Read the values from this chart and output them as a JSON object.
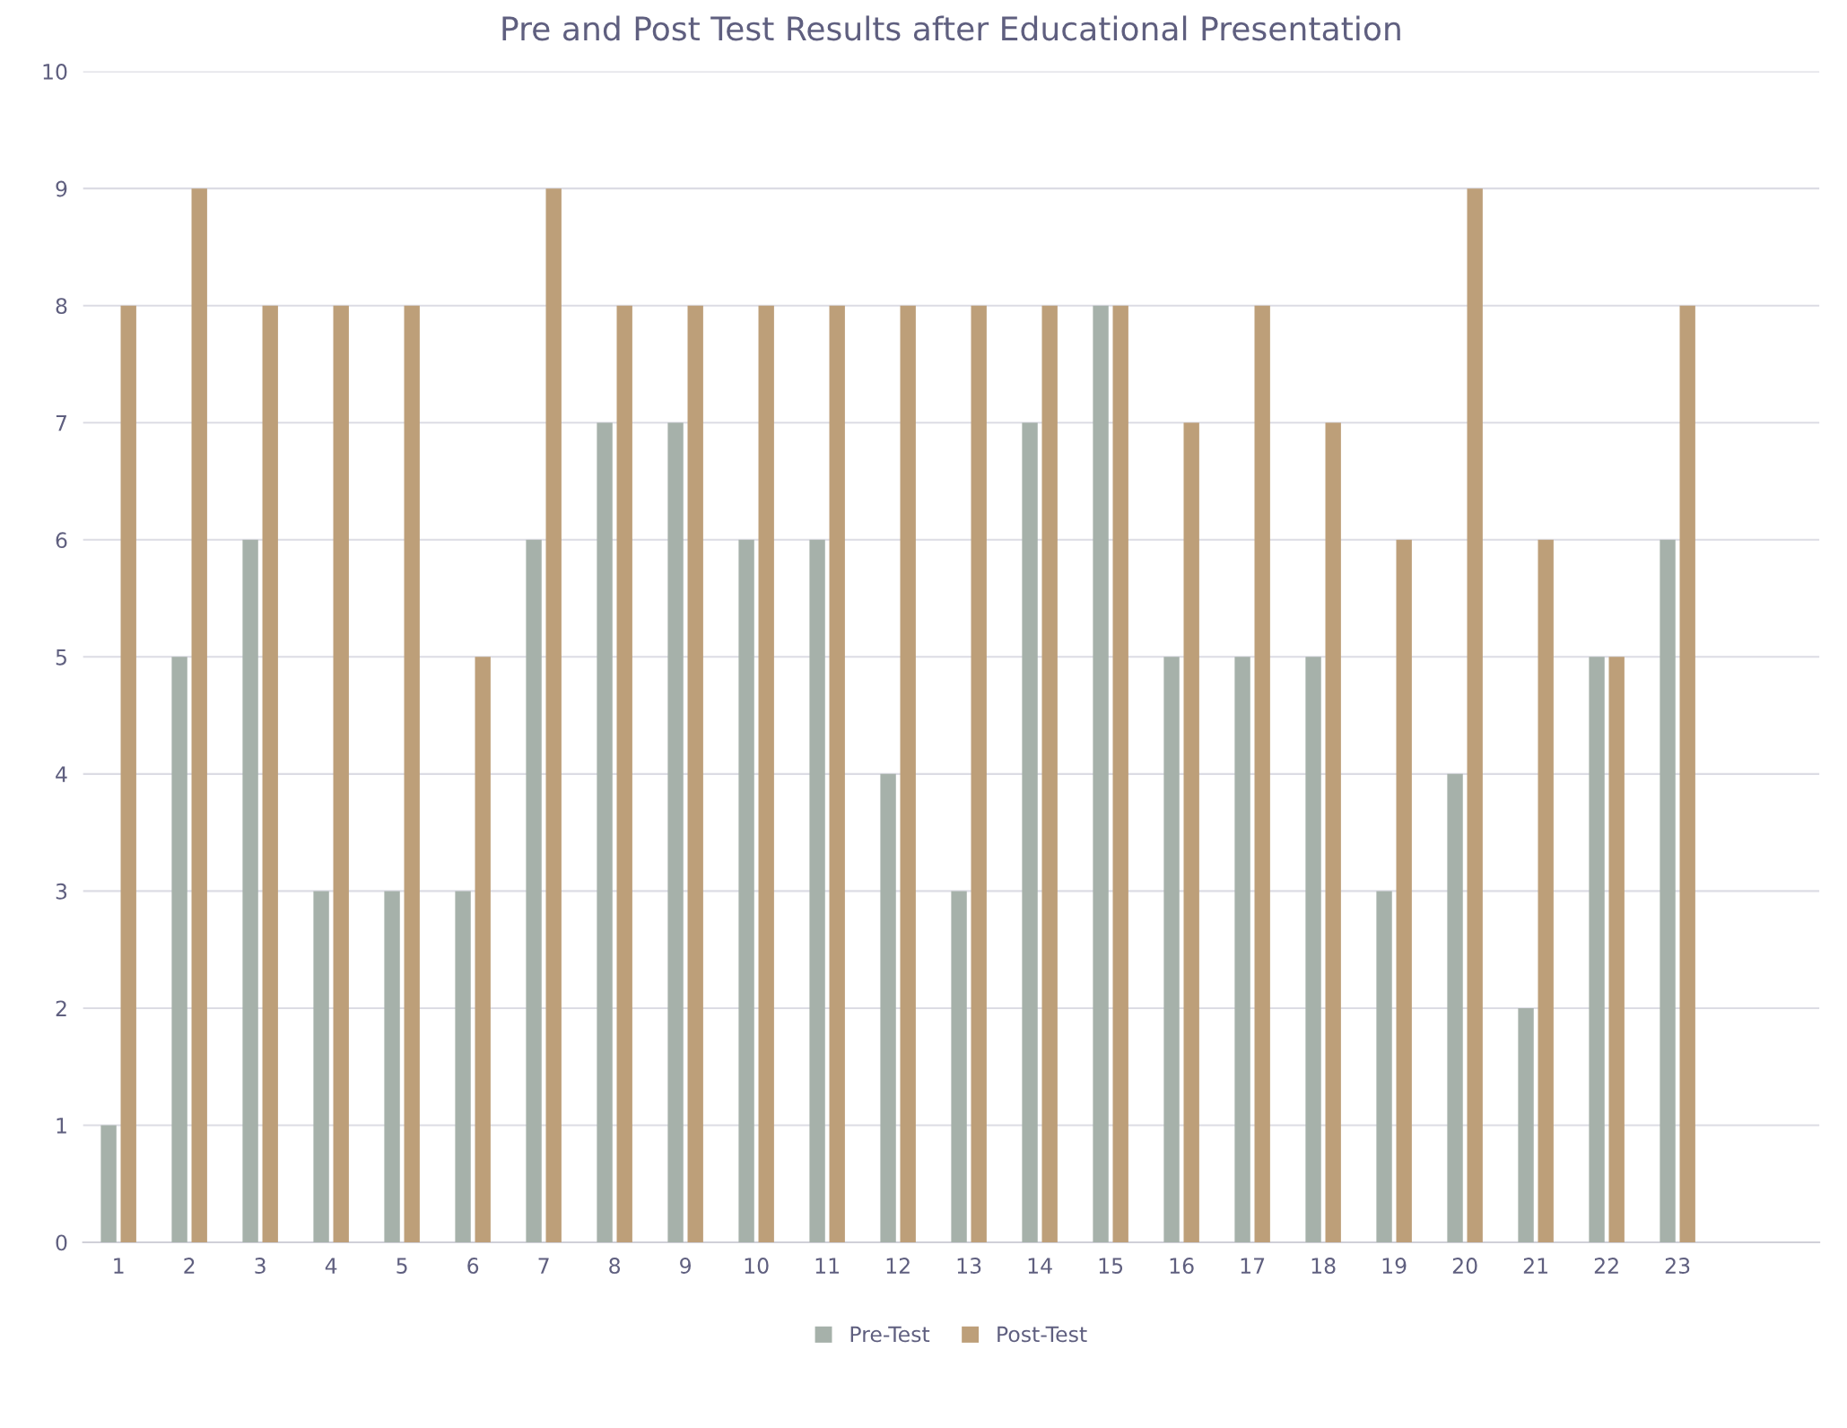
{
  "chart_data": {
    "type": "bar",
    "title": "Pre and Post Test Results after Educational Presentation",
    "categories": [
      "1",
      "2",
      "3",
      "4",
      "5",
      "6",
      "7",
      "8",
      "9",
      "10",
      "11",
      "12",
      "13",
      "14",
      "15",
      "16",
      "17",
      "18",
      "19",
      "20",
      "21",
      "22",
      "23"
    ],
    "series": [
      {
        "name": "Pre-Test",
        "color": "#a6b1aa",
        "values": [
          1,
          5,
          6,
          3,
          3,
          3,
          6,
          7,
          7,
          6,
          6,
          4,
          3,
          7,
          8,
          5,
          5,
          5,
          3,
          4,
          2,
          5,
          6
        ]
      },
      {
        "name": "Post-Test",
        "color": "#bd9f79",
        "values": [
          8,
          9,
          8,
          8,
          8,
          5,
          9,
          8,
          8,
          8,
          8,
          8,
          8,
          8,
          8,
          7,
          8,
          7,
          6,
          9,
          6,
          5,
          8
        ]
      }
    ],
    "ylim": [
      0,
      10
    ],
    "yticks": [
      0,
      1,
      2,
      3,
      4,
      5,
      6,
      7,
      8,
      9,
      10
    ],
    "grid": "y",
    "legend": "bottom"
  }
}
